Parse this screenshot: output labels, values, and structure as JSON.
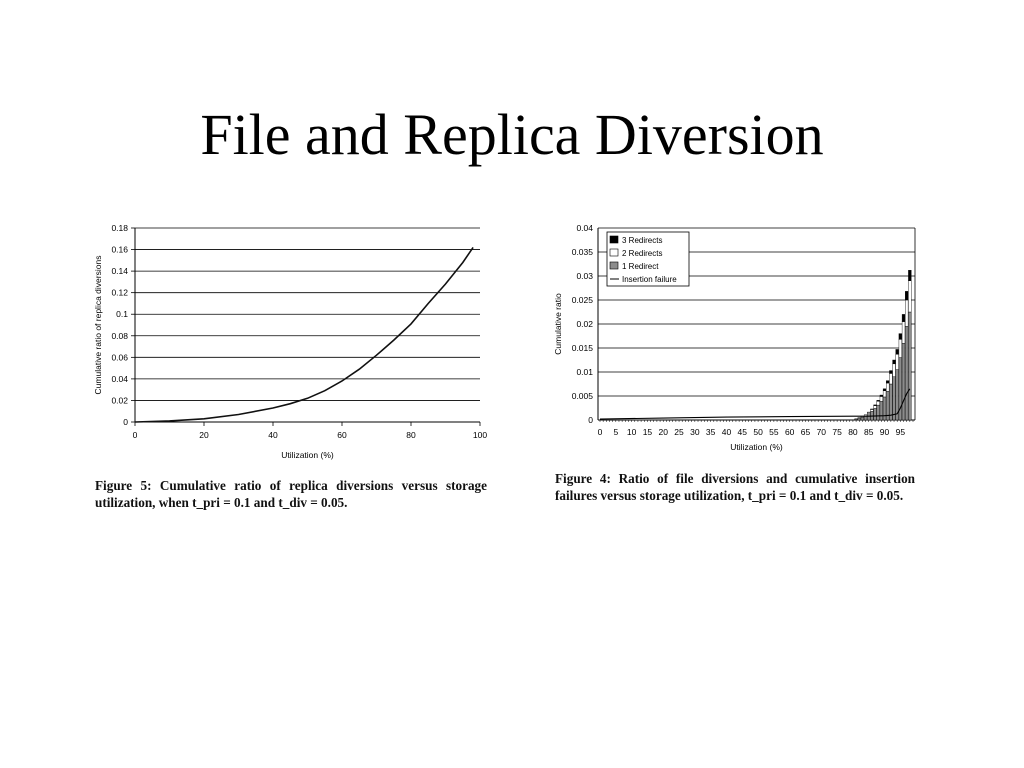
{
  "slide": {
    "title": "File and Replica Diversion"
  },
  "chart_data": [
    {
      "type": "line",
      "title": "",
      "xlabel": "Utilization (%)",
      "ylabel": "Cumulative ratio of replica diversions",
      "xlim": [
        0,
        100
      ],
      "ylim": [
        0,
        0.18
      ],
      "xticks": [
        "0",
        "20",
        "40",
        "60",
        "80",
        "100"
      ],
      "yticks": [
        "0",
        "0.02",
        "0.04",
        "0.06",
        "0.08",
        "0.1",
        "0.12",
        "0.14",
        "0.16",
        "0.18"
      ],
      "grid": "horizontal",
      "series": [
        {
          "x": [
            0,
            10,
            20,
            30,
            40,
            45,
            50,
            55,
            60,
            65,
            70,
            75,
            80,
            85,
            90,
            95,
            98
          ],
          "y": [
            0,
            0.001,
            0.003,
            0.007,
            0.013,
            0.017,
            0.022,
            0.029,
            0.038,
            0.049,
            0.062,
            0.076,
            0.091,
            0.11,
            0.128,
            0.148,
            0.162
          ]
        }
      ]
    },
    {
      "type": "bar",
      "title": "",
      "xlabel": "Utilization (%)",
      "ylabel": "Cumulative ratio",
      "ylim": [
        0,
        0.04
      ],
      "yticks": [
        "0",
        "0.005",
        "0.01",
        "0.015",
        "0.02",
        "0.025",
        "0.03",
        "0.035",
        "0.04"
      ],
      "xticks": [
        "0",
        "5",
        "10",
        "15",
        "20",
        "25",
        "30",
        "35",
        "40",
        "45",
        "50",
        "55",
        "60",
        "65",
        "70",
        "75",
        "80",
        "85",
        "90",
        "95"
      ],
      "grid": "horizontal",
      "legend_position": "top-left",
      "categories": [
        81,
        82,
        83,
        84,
        85,
        86,
        87,
        88,
        89,
        90,
        91,
        92,
        93,
        94,
        95,
        96,
        97,
        98
      ],
      "series": [
        {
          "name": "1 Redirect",
          "color": "#8c8c8c",
          "values": [
            0.0002,
            0.0004,
            0.0006,
            0.0009,
            0.0013,
            0.0018,
            0.0024,
            0.0031,
            0.0039,
            0.0048,
            0.006,
            0.0075,
            0.009,
            0.0105,
            0.013,
            0.016,
            0.0195,
            0.0225
          ]
        },
        {
          "name": "2 Redirects",
          "color": "#ffffff",
          "values": [
            5e-05,
            0.0001,
            0.00015,
            0.0002,
            0.0003,
            0.0004,
            0.0006,
            0.0008,
            0.001,
            0.0013,
            0.0017,
            0.0022,
            0.0027,
            0.0032,
            0.0038,
            0.0045,
            0.0055,
            0.0065
          ]
        },
        {
          "name": "3 Redirects",
          "color": "#000000",
          "values": [
            0,
            0,
            0,
            0,
            5e-05,
            0.0001,
            0.00015,
            0.0002,
            0.0003,
            0.0004,
            0.0005,
            0.0006,
            0.0008,
            0.001,
            0.0012,
            0.0015,
            0.0018,
            0.0022
          ]
        },
        {
          "name": "Insertion failure",
          "type": "line",
          "color": "#000000",
          "x": [
            0,
            20,
            40,
            60,
            80,
            85,
            90,
            92,
            94,
            95,
            96,
            97,
            98
          ],
          "y": [
            0.0002,
            0.0004,
            0.0006,
            0.0007,
            0.0008,
            0.0008,
            0.0009,
            0.001,
            0.0013,
            0.0025,
            0.004,
            0.0055,
            0.0065
          ]
        }
      ]
    }
  ],
  "captions": {
    "left": "Figure 5: Cumulative ratio of replica diversions versus storage utilization, when t_pri = 0.1 and t_div = 0.05.",
    "right": "Figure 4: Ratio of file diversions and cumulative insertion failures versus storage utilization, t_pri = 0.1 and t_div = 0.05."
  }
}
